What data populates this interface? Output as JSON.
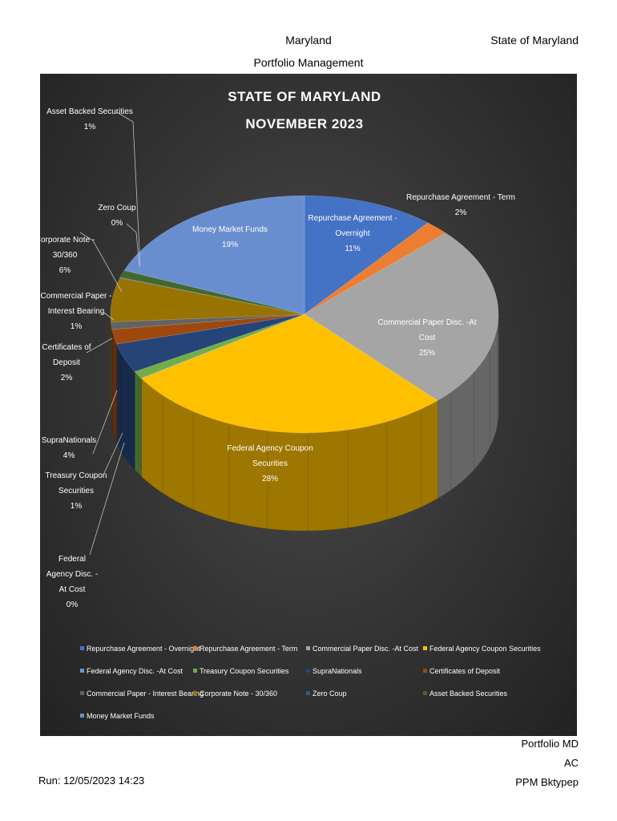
{
  "header": {
    "title": "Maryland",
    "subtitle": "Portfolio Management",
    "right": "State of Maryland"
  },
  "footer": {
    "run": "Run: 12/05/2023 14:23",
    "right_line1": "Portfolio MD",
    "right_line2": "AC",
    "right_line3": "PPM Bktypep"
  },
  "chart_data": {
    "type": "pie",
    "title_line1": "STATE OF MARYLAND",
    "title_line2": "NOVEMBER 2023",
    "legend_position": "bottom",
    "slices": [
      {
        "name": "Repurchase Agreement - Overnight",
        "value": 11,
        "label": "11%",
        "color": "#4472c4"
      },
      {
        "name": "Repurchase Agreement - Term",
        "value": 2,
        "label": "2%",
        "color": "#ed7d31"
      },
      {
        "name": "Commercial Paper Disc. -At Cost",
        "value": 25,
        "label": "25%",
        "color": "#a5a5a5"
      },
      {
        "name": "Federal Agency Coupon Securities",
        "value": 28,
        "label": "28%",
        "color": "#ffc000"
      },
      {
        "name": "Federal Agency Disc. -At Cost",
        "value": 0,
        "label": "0%",
        "color": "#5b9bd5"
      },
      {
        "name": "Treasury Coupon Securities",
        "value": 1,
        "label": "1%",
        "color": "#70ad47"
      },
      {
        "name": "SupraNationals",
        "value": 4,
        "label": "4%",
        "color": "#264478"
      },
      {
        "name": "Certificates of Deposit",
        "value": 2,
        "label": "2%",
        "color": "#9e480e"
      },
      {
        "name": "Commercial Paper - Interest Bearing",
        "value": 1,
        "label": "1%",
        "color": "#636363"
      },
      {
        "name": "Corporate Note - 30/360",
        "value": 6,
        "label": "6%",
        "color": "#997300"
      },
      {
        "name": "Zero Coup",
        "value": 0,
        "label": "0%",
        "color": "#255e91"
      },
      {
        "name": "Asset Backed Securities",
        "value": 1,
        "label": "1%",
        "color": "#43682b"
      },
      {
        "name": "Money Market Funds",
        "value": 19,
        "label": "19%",
        "color": "#698ed0"
      }
    ],
    "callouts": [
      {
        "lines": [
          "Repurchase Agreement -",
          "Overnight",
          "11%"
        ]
      },
      {
        "lines": [
          "Repurchase Agreement - Term",
          "2%"
        ]
      },
      {
        "lines": [
          "Commercial Paper Disc. -At",
          "Cost",
          "25%"
        ]
      },
      {
        "lines": [
          "Federal Agency Coupon",
          "Securities",
          "28%"
        ]
      },
      {
        "lines": [
          "Federal",
          "Agency Disc. -",
          "At Cost",
          "0%"
        ]
      },
      {
        "lines": [
          "Treasury Coupon",
          "Securities",
          "1%"
        ]
      },
      {
        "lines": [
          "SupraNationals",
          "4%"
        ]
      },
      {
        "lines": [
          "Certificates of",
          "Deposit",
          "2%"
        ]
      },
      {
        "lines": [
          "Commercial Paper -",
          "Interest Bearing",
          "1%"
        ]
      },
      {
        "lines": [
          "Corporate Note -",
          "30/360",
          "6%"
        ]
      },
      {
        "lines": [
          "Zero Coup",
          "0%"
        ]
      },
      {
        "lines": [
          "Asset Backed Securities",
          "1%"
        ]
      },
      {
        "lines": [
          "Money Market Funds",
          "19%"
        ]
      }
    ]
  }
}
